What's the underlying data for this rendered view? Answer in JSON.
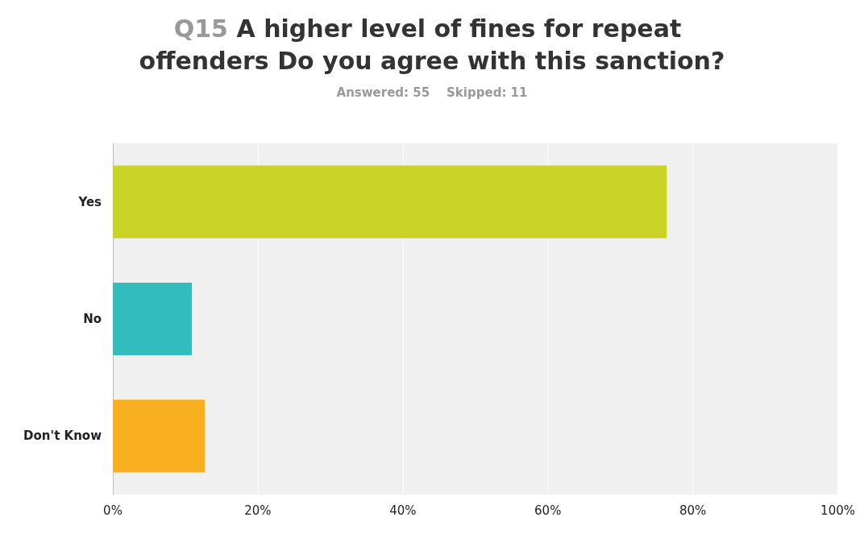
{
  "chart_data": {
    "type": "bar",
    "orientation": "horizontal",
    "title": "Q15 A higher level of fines for repeat offenders Do you agree with this sanction?",
    "subtitle": "Answered: 55    Skipped: 11",
    "categories": [
      "Yes",
      "No",
      "Don't Know"
    ],
    "values": [
      76.4,
      10.9,
      12.7
    ],
    "colors": [
      "#c9d328",
      "#33bcbe",
      "#f7ae1f"
    ],
    "xlim": [
      0,
      100
    ],
    "xticks": [
      {
        "value": 0,
        "label": "0%"
      },
      {
        "value": 20,
        "label": "20%"
      },
      {
        "value": 40,
        "label": "40%"
      },
      {
        "value": 60,
        "label": "60%"
      },
      {
        "value": 80,
        "label": "80%"
      },
      {
        "value": 100,
        "label": "100%"
      }
    ],
    "grid": "x"
  }
}
